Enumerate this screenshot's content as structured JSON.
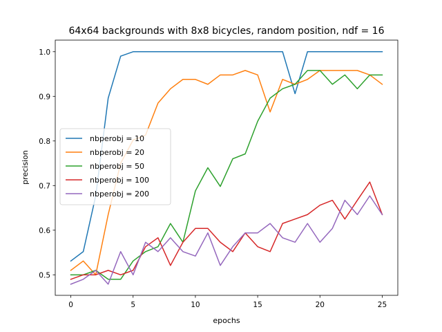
{
  "chart_data": {
    "type": "line",
    "title": "64x64 backgrounds with 8x8 bicycles, random position, ndf = 16",
    "xlabel": "epochs",
    "ylabel": "precision",
    "xlim": [
      -1.25,
      26.25
    ],
    "ylim": [
      0.454,
      1.026
    ],
    "xticks": [
      0,
      5,
      10,
      15,
      20,
      25
    ],
    "yticks": [
      0.5,
      0.6,
      0.7,
      0.8,
      0.9,
      1.0
    ],
    "ytick_labels": [
      "0.5",
      "0.6",
      "0.7",
      "0.8",
      "0.9",
      "1.0"
    ],
    "grid": false,
    "legend_position": "center-left",
    "x": [
      0,
      1,
      2,
      3,
      4,
      5,
      6,
      7,
      8,
      9,
      10,
      11,
      12,
      13,
      14,
      15,
      16,
      17,
      18,
      19,
      20,
      21,
      22,
      23,
      24,
      25
    ],
    "series": [
      {
        "name": "nbperobj = 10",
        "color": "#1f77b4",
        "values": [
          0.531,
          0.552,
          0.677,
          0.896,
          0.99,
          1.0,
          1.0,
          1.0,
          1.0,
          1.0,
          1.0,
          1.0,
          1.0,
          1.0,
          1.0,
          1.0,
          1.0,
          1.0,
          0.906,
          1.0,
          1.0,
          1.0,
          1.0,
          1.0,
          1.0,
          1.0
        ]
      },
      {
        "name": "nbperobj = 20",
        "color": "#ff7f0e",
        "values": [
          0.51,
          0.531,
          0.5,
          0.635,
          0.75,
          0.802,
          0.813,
          0.885,
          0.917,
          0.938,
          0.938,
          0.927,
          0.948,
          0.948,
          0.958,
          0.948,
          0.865,
          0.938,
          0.927,
          0.938,
          0.958,
          0.958,
          0.958,
          0.958,
          0.948,
          0.927
        ]
      },
      {
        "name": "nbperobj = 50",
        "color": "#2ca02c",
        "values": [
          0.5,
          0.5,
          0.51,
          0.49,
          0.49,
          0.531,
          0.552,
          0.563,
          0.615,
          0.573,
          0.688,
          0.74,
          0.698,
          0.76,
          0.771,
          0.844,
          0.896,
          0.917,
          0.927,
          0.958,
          0.958,
          0.927,
          0.948,
          0.917,
          0.948,
          0.948
        ]
      },
      {
        "name": "nbperobj = 100",
        "color": "#d62728",
        "values": [
          0.49,
          0.5,
          0.5,
          0.51,
          0.5,
          0.51,
          0.563,
          0.583,
          0.521,
          0.573,
          0.604,
          0.604,
          0.573,
          0.552,
          0.594,
          0.563,
          0.552,
          0.615,
          0.625,
          0.635,
          0.656,
          0.667,
          0.625,
          0.667,
          0.708,
          0.635
        ]
      },
      {
        "name": "nbperobj = 200",
        "color": "#9467bd",
        "values": [
          0.479,
          0.49,
          0.51,
          0.479,
          0.552,
          0.5,
          0.573,
          0.552,
          0.583,
          0.552,
          0.542,
          0.594,
          0.521,
          0.563,
          0.594,
          0.594,
          0.615,
          0.583,
          0.573,
          0.615,
          0.573,
          0.604,
          0.667,
          0.635,
          0.677,
          0.635
        ]
      }
    ]
  }
}
